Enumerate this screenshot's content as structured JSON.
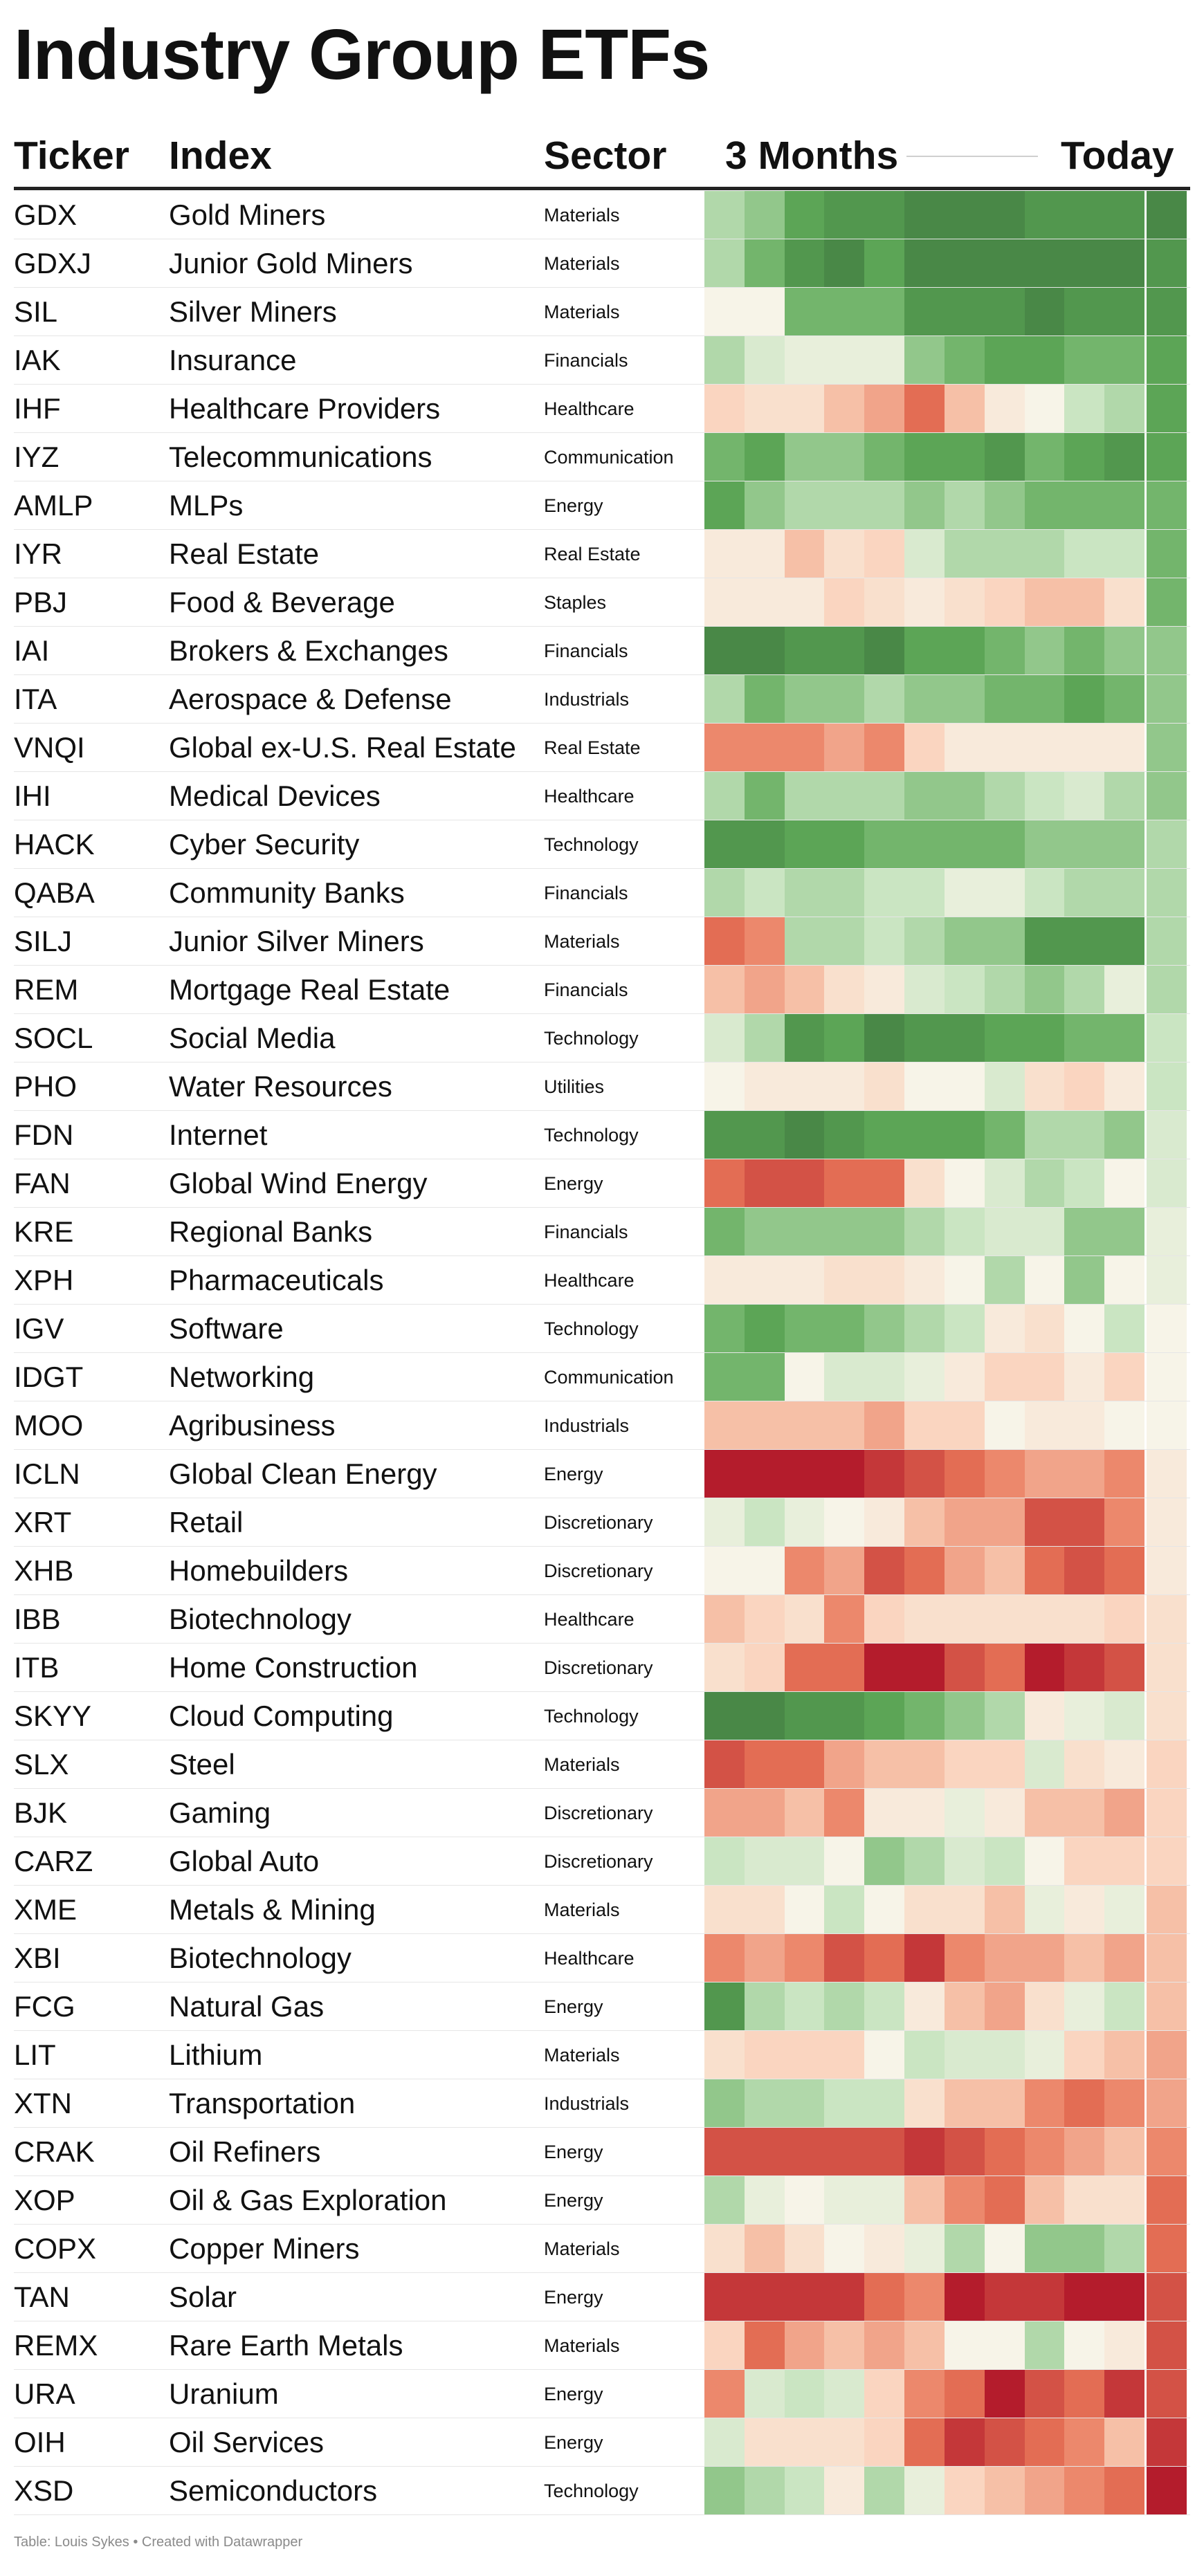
{
  "title": "Industry Group ETFs",
  "headers": {
    "ticker": "Ticker",
    "index": "Index",
    "sector": "Sector",
    "period_start": "3 Months",
    "period_end": "Today"
  },
  "footer": "Table: Louis Sykes • Created with Datawrapper",
  "colors": {
    "strong_green": "#3f7a3f",
    "light_green": "#c5e3be",
    "neutral": "#f7f4e8",
    "light_red": "#fad2bb",
    "strong_red": "#b41c2c"
  },
  "chart_data": {
    "type": "table",
    "columns": [
      "Ticker",
      "Index",
      "Sector",
      "3 Months → Today"
    ],
    "heatmap_scale_note": "",
    "rows": [
      {
        "ticker": "GDX",
        "index": "Gold Miners",
        "sector": "Materials",
        "heat": [
          4,
          5,
          7,
          8,
          8,
          9,
          9,
          9,
          8,
          8,
          8,
          9
        ]
      },
      {
        "ticker": "GDXJ",
        "index": "Junior Gold Miners",
        "sector": "Materials",
        "heat": [
          4,
          6,
          8,
          9,
          7,
          9,
          9,
          9,
          9,
          9,
          9,
          8
        ]
      },
      {
        "ticker": "SIL",
        "index": "Silver Miners",
        "sector": "Materials",
        "heat": [
          0,
          0,
          6,
          6,
          6,
          8,
          8,
          8,
          9,
          8,
          8,
          8
        ]
      },
      {
        "ticker": "IAK",
        "index": "Insurance",
        "sector": "Financials",
        "heat": [
          4,
          2,
          1,
          1,
          1,
          5,
          6,
          7,
          7,
          6,
          6,
          7
        ]
      },
      {
        "ticker": "IHF",
        "index": "Healthcare Providers",
        "sector": "Healthcare",
        "heat": [
          -3,
          -2,
          -2,
          -4,
          -5,
          -7,
          -4,
          -1,
          0,
          3,
          4,
          7
        ]
      },
      {
        "ticker": "IYZ",
        "index": "Telecommunications",
        "sector": "Communication",
        "heat": [
          6,
          7,
          5,
          5,
          6,
          7,
          7,
          8,
          6,
          7,
          8,
          7
        ]
      },
      {
        "ticker": "AMLP",
        "index": "MLPs",
        "sector": "Energy",
        "heat": [
          7,
          5,
          4,
          4,
          4,
          5,
          4,
          5,
          6,
          6,
          6,
          6
        ]
      },
      {
        "ticker": "IYR",
        "index": "Real Estate",
        "sector": "Real Estate",
        "heat": [
          -1,
          -1,
          -4,
          -2,
          -3,
          2,
          4,
          4,
          4,
          3,
          3,
          6
        ]
      },
      {
        "ticker": "PBJ",
        "index": "Food & Beverage",
        "sector": "Staples",
        "heat": [
          -1,
          -1,
          -1,
          -3,
          -2,
          -1,
          -2,
          -3,
          -4,
          -4,
          -2,
          6
        ]
      },
      {
        "ticker": "IAI",
        "index": "Brokers & Exchanges",
        "sector": "Financials",
        "heat": [
          9,
          9,
          8,
          8,
          9,
          7,
          7,
          6,
          5,
          6,
          5,
          5
        ]
      },
      {
        "ticker": "ITA",
        "index": "Aerospace & Defense",
        "sector": "Industrials",
        "heat": [
          4,
          6,
          5,
          5,
          4,
          5,
          5,
          6,
          6,
          7,
          6,
          5
        ]
      },
      {
        "ticker": "VNQI",
        "index": "Global ex-U.S. Real Estate",
        "sector": "Real Estate",
        "heat": [
          -6,
          -6,
          -6,
          -5,
          -6,
          -3,
          -1,
          -1,
          -1,
          -1,
          -1,
          5
        ]
      },
      {
        "ticker": "IHI",
        "index": "Medical Devices",
        "sector": "Healthcare",
        "heat": [
          4,
          6,
          4,
          4,
          4,
          5,
          5,
          4,
          3,
          2,
          4,
          5
        ]
      },
      {
        "ticker": "HACK",
        "index": "Cyber Security",
        "sector": "Technology",
        "heat": [
          8,
          8,
          7,
          7,
          6,
          6,
          6,
          6,
          5,
          5,
          5,
          4
        ]
      },
      {
        "ticker": "QABA",
        "index": "Community Banks",
        "sector": "Financials",
        "heat": [
          4,
          3,
          4,
          4,
          3,
          3,
          1,
          1,
          3,
          4,
          4,
          4
        ]
      },
      {
        "ticker": "SILJ",
        "index": "Junior Silver Miners",
        "sector": "Materials",
        "heat": [
          -7,
          -6,
          4,
          4,
          3,
          4,
          5,
          5,
          8,
          8,
          8,
          4
        ]
      },
      {
        "ticker": "REM",
        "index": "Mortgage Real Estate",
        "sector": "Financials",
        "heat": [
          -4,
          -5,
          -4,
          -2,
          -1,
          2,
          3,
          4,
          5,
          4,
          1,
          4
        ]
      },
      {
        "ticker": "SOCL",
        "index": "Social Media",
        "sector": "Technology",
        "heat": [
          2,
          4,
          8,
          7,
          9,
          8,
          8,
          7,
          7,
          6,
          6,
          3
        ]
      },
      {
        "ticker": "PHO",
        "index": "Water Resources",
        "sector": "Utilities",
        "heat": [
          0,
          -1,
          -1,
          -1,
          -2,
          0,
          0,
          2,
          -2,
          -3,
          -1,
          3
        ]
      },
      {
        "ticker": "FDN",
        "index": "Internet",
        "sector": "Technology",
        "heat": [
          8,
          8,
          9,
          8,
          7,
          7,
          7,
          6,
          4,
          4,
          5,
          2
        ]
      },
      {
        "ticker": "FAN",
        "index": "Global Wind Energy",
        "sector": "Energy",
        "heat": [
          -7,
          -8,
          -8,
          -7,
          -7,
          -2,
          0,
          2,
          4,
          3,
          0,
          2
        ]
      },
      {
        "ticker": "KRE",
        "index": "Regional Banks",
        "sector": "Financials",
        "heat": [
          6,
          5,
          5,
          5,
          5,
          4,
          3,
          2,
          2,
          5,
          5,
          1
        ]
      },
      {
        "ticker": "XPH",
        "index": "Pharmaceuticals",
        "sector": "Healthcare",
        "heat": [
          -1,
          -1,
          -1,
          -2,
          -2,
          -1,
          0,
          4,
          0,
          5,
          0,
          1
        ]
      },
      {
        "ticker": "IGV",
        "index": "Software",
        "sector": "Technology",
        "heat": [
          6,
          7,
          6,
          6,
          5,
          4,
          3,
          -1,
          -2,
          0,
          3,
          0
        ]
      },
      {
        "ticker": "IDGT",
        "index": "Networking",
        "sector": "Communication",
        "heat": [
          6,
          6,
          0,
          2,
          2,
          1,
          -1,
          -3,
          -3,
          -1,
          -3,
          0
        ]
      },
      {
        "ticker": "MOO",
        "index": "Agribusiness",
        "sector": "Industrials",
        "heat": [
          -4,
          -4,
          -4,
          -4,
          -5,
          -3,
          -3,
          0,
          -1,
          -1,
          0,
          0
        ]
      },
      {
        "ticker": "ICLN",
        "index": "Global Clean Energy",
        "sector": "Energy",
        "heat": [
          -10,
          -10,
          -10,
          -10,
          -9,
          -8,
          -7,
          -6,
          -5,
          -5,
          -6,
          -1
        ]
      },
      {
        "ticker": "XRT",
        "index": "Retail",
        "sector": "Discretionary",
        "heat": [
          1,
          3,
          1,
          0,
          -1,
          -4,
          -5,
          -5,
          -8,
          -8,
          -6,
          -1
        ]
      },
      {
        "ticker": "XHB",
        "index": "Homebuilders",
        "sector": "Discretionary",
        "heat": [
          0,
          0,
          -6,
          -5,
          -8,
          -7,
          -5,
          -4,
          -7,
          -8,
          -7,
          -1
        ]
      },
      {
        "ticker": "IBB",
        "index": "Biotechnology",
        "sector": "Healthcare",
        "heat": [
          -4,
          -3,
          -2,
          -6,
          -3,
          -2,
          -2,
          -2,
          -2,
          -2,
          -3,
          -2
        ]
      },
      {
        "ticker": "ITB",
        "index": "Home Construction",
        "sector": "Discretionary",
        "heat": [
          -2,
          -3,
          -7,
          -7,
          -10,
          -10,
          -8,
          -7,
          -10,
          -9,
          -8,
          -2
        ]
      },
      {
        "ticker": "SKYY",
        "index": "Cloud Computing",
        "sector": "Technology",
        "heat": [
          9,
          9,
          8,
          8,
          7,
          6,
          5,
          4,
          -1,
          1,
          2,
          -2
        ]
      },
      {
        "ticker": "SLX",
        "index": "Steel",
        "sector": "Materials",
        "heat": [
          -8,
          -7,
          -7,
          -5,
          -4,
          -4,
          -3,
          -3,
          2,
          -2,
          -1,
          -3
        ]
      },
      {
        "ticker": "BJK",
        "index": "Gaming",
        "sector": "Discretionary",
        "heat": [
          -5,
          -5,
          -4,
          -6,
          -1,
          -1,
          1,
          -1,
          -4,
          -4,
          -5,
          -3
        ]
      },
      {
        "ticker": "CARZ",
        "index": "Global Auto",
        "sector": "Discretionary",
        "heat": [
          3,
          2,
          2,
          0,
          5,
          4,
          2,
          3,
          0,
          -3,
          -3,
          -3
        ]
      },
      {
        "ticker": "XME",
        "index": "Metals & Mining",
        "sector": "Materials",
        "heat": [
          -2,
          -2,
          0,
          3,
          0,
          -2,
          -2,
          -4,
          1,
          -1,
          1,
          -4
        ]
      },
      {
        "ticker": "XBI",
        "index": "Biotechnology",
        "sector": "Healthcare",
        "heat": [
          -6,
          -5,
          -6,
          -8,
          -7,
          -9,
          -6,
          -5,
          -5,
          -4,
          -5,
          -4
        ]
      },
      {
        "ticker": "FCG",
        "index": "Natural Gas",
        "sector": "Energy",
        "heat": [
          8,
          4,
          3,
          4,
          3,
          -1,
          -4,
          -5,
          -2,
          1,
          3,
          -4
        ]
      },
      {
        "ticker": "LIT",
        "index": "Lithium",
        "sector": "Materials",
        "heat": [
          -2,
          -3,
          -3,
          -3,
          0,
          3,
          2,
          2,
          1,
          -3,
          -4,
          -5
        ]
      },
      {
        "ticker": "XTN",
        "index": "Transportation",
        "sector": "Industrials",
        "heat": [
          5,
          4,
          4,
          3,
          3,
          -2,
          -4,
          -4,
          -6,
          -7,
          -6,
          -5
        ]
      },
      {
        "ticker": "CRAK",
        "index": "Oil Refiners",
        "sector": "Energy",
        "heat": [
          -8,
          -8,
          -8,
          -8,
          -8,
          -9,
          -8,
          -7,
          -6,
          -5,
          -4,
          -6
        ]
      },
      {
        "ticker": "XOP",
        "index": "Oil & Gas Exploration",
        "sector": "Energy",
        "heat": [
          4,
          1,
          0,
          1,
          1,
          -4,
          -6,
          -7,
          -4,
          -2,
          -2,
          -7
        ]
      },
      {
        "ticker": "COPX",
        "index": "Copper Miners",
        "sector": "Materials",
        "heat": [
          -2,
          -4,
          -2,
          0,
          -1,
          1,
          4,
          0,
          5,
          5,
          4,
          -7
        ]
      },
      {
        "ticker": "TAN",
        "index": "Solar",
        "sector": "Energy",
        "heat": [
          -9,
          -9,
          -9,
          -9,
          -7,
          -6,
          -10,
          -9,
          -9,
          -10,
          -10,
          -8
        ]
      },
      {
        "ticker": "REMX",
        "index": "Rare Earth Metals",
        "sector": "Materials",
        "heat": [
          -3,
          -7,
          -5,
          -4,
          -5,
          -4,
          0,
          0,
          4,
          0,
          -1,
          -8
        ]
      },
      {
        "ticker": "URA",
        "index": "Uranium",
        "sector": "Energy",
        "heat": [
          -6,
          2,
          3,
          2,
          -3,
          -6,
          -7,
          -10,
          -8,
          -7,
          -9,
          -8
        ]
      },
      {
        "ticker": "OIH",
        "index": "Oil Services",
        "sector": "Energy",
        "heat": [
          2,
          -2,
          -2,
          -2,
          -3,
          -7,
          -9,
          -8,
          -7,
          -6,
          -4,
          -9
        ]
      },
      {
        "ticker": "XSD",
        "index": "Semiconductors",
        "sector": "Technology",
        "heat": [
          5,
          4,
          3,
          -1,
          4,
          1,
          -3,
          -4,
          -5,
          -6,
          -7,
          -10
        ]
      }
    ]
  }
}
